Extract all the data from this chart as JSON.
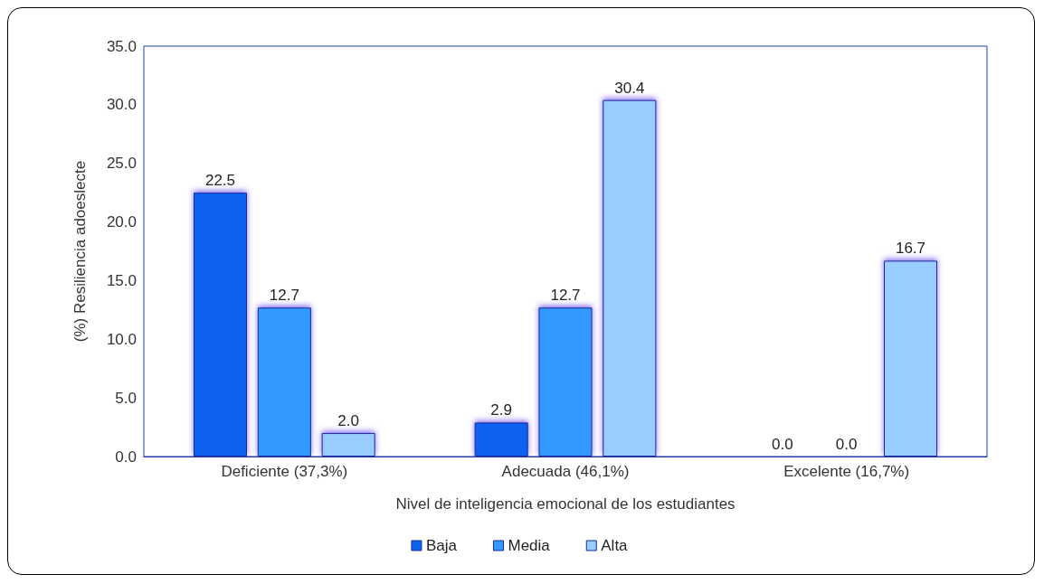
{
  "chart_data": {
    "type": "bar",
    "xlabel": "Nivel de inteligencia emocional de los estudiantes",
    "ylabel": "(%) Resiliencia adoeslecte",
    "categories": [
      "Deficiente (37,3%)",
      "Adecuada (46,1%)",
      "Excelente (16,7%)"
    ],
    "series": [
      {
        "name": "Baja",
        "color": "#0a64f0",
        "values": [
          22.5,
          2.9,
          0.0
        ],
        "value_labels": [
          "22.5",
          "2.9",
          "0.0"
        ]
      },
      {
        "name": "Media",
        "color": "#3399ff",
        "values": [
          12.7,
          12.7,
          0.0
        ],
        "value_labels": [
          "12.7",
          "12.7",
          "0.0"
        ]
      },
      {
        "name": "Alta",
        "color": "#99ccff",
        "values": [
          2.0,
          30.4,
          16.7
        ],
        "value_labels": [
          "2.0",
          "30.4",
          "16.7"
        ]
      }
    ],
    "ylim": [
      0,
      35
    ],
    "yticks": [
      {
        "value": 0,
        "label": "0.0"
      },
      {
        "value": 5,
        "label": "5.0"
      },
      {
        "value": 10,
        "label": "10.0"
      },
      {
        "value": 15,
        "label": "15.0"
      },
      {
        "value": 20,
        "label": "20.0"
      },
      {
        "value": 25,
        "label": "25.0"
      },
      {
        "value": 30,
        "label": "30.0"
      },
      {
        "value": 35,
        "label": "35.0"
      }
    ],
    "grid": false,
    "legend": "bottom"
  }
}
